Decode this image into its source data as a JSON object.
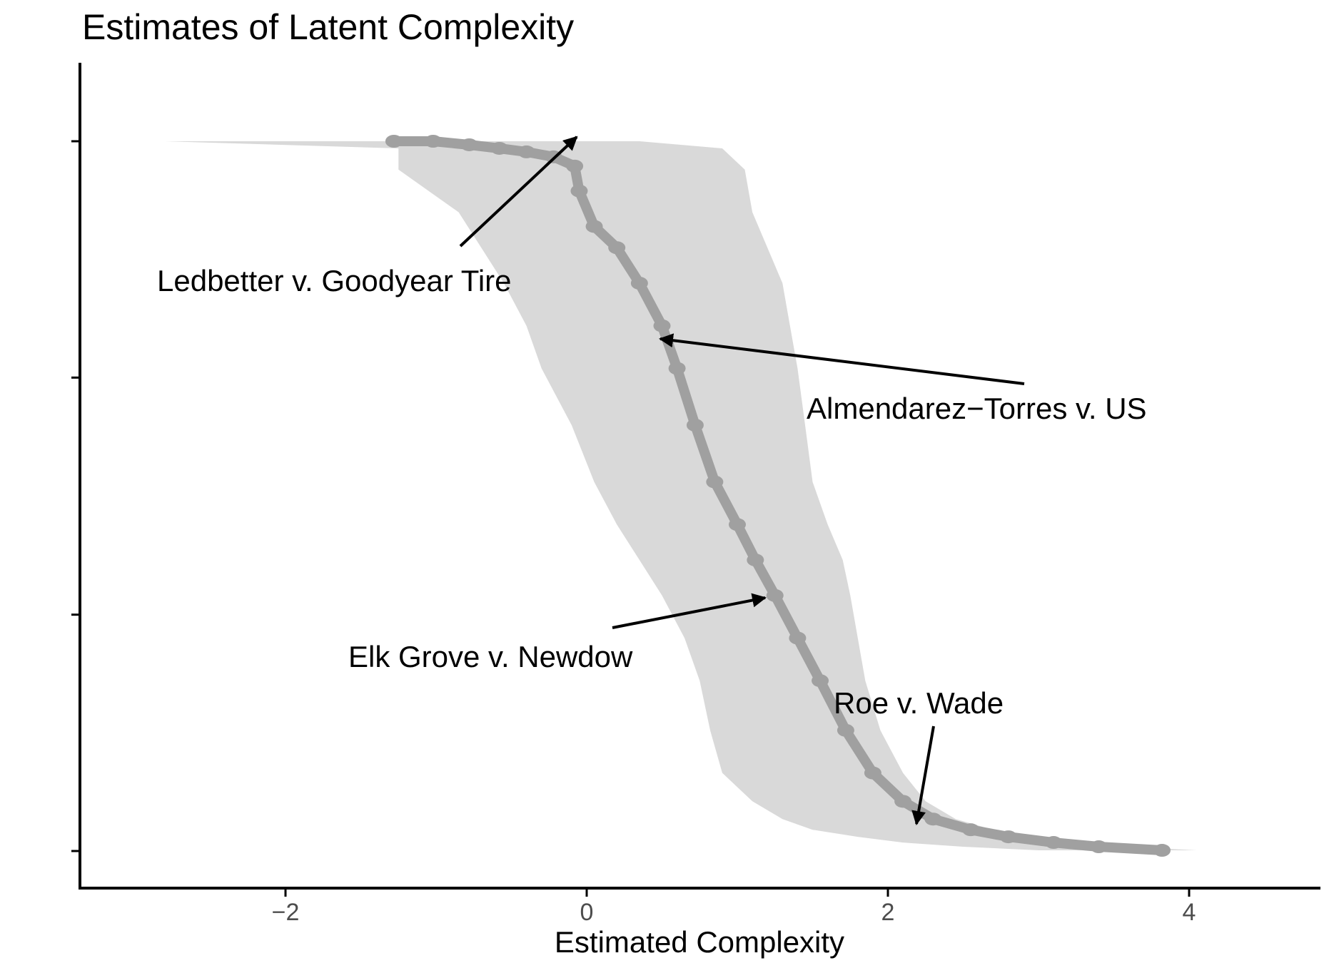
{
  "chart_data": {
    "type": "line",
    "title": "Estimates of Latent Complexity",
    "xlabel": "Estimated Complexity",
    "ylabel": "",
    "xlim": [
      -3.4,
      4.8
    ],
    "ylim": [
      -0.05,
      1.03
    ],
    "x_ticks": [
      -2,
      0,
      2,
      4
    ],
    "x_tick_labels": [
      "−2",
      "0",
      "2",
      "4"
    ],
    "y_ticks": [
      0,
      0.333,
      0.667,
      1.0
    ],
    "grid": false,
    "legend": "none",
    "colors": {
      "band": "#d9d9d9",
      "line": "#a0a0a0",
      "axis": "#000000",
      "tick_text": "#4d4d4d"
    },
    "series": [
      {
        "type": "line",
        "x": [
          -1.28,
          -1.02,
          -0.78,
          -0.58,
          -0.4,
          -0.22,
          -0.08,
          -0.05,
          0.05,
          0.2,
          0.35,
          0.5,
          0.6,
          0.72,
          0.85,
          1.0,
          1.12,
          1.25,
          1.4,
          1.55,
          1.72,
          1.9,
          2.1,
          2.3,
          2.55,
          2.8,
          3.1,
          3.4,
          3.82
        ],
        "y": [
          1.0,
          1.0,
          0.995,
          0.99,
          0.985,
          0.978,
          0.965,
          0.93,
          0.88,
          0.85,
          0.8,
          0.74,
          0.68,
          0.6,
          0.52,
          0.46,
          0.41,
          0.36,
          0.3,
          0.24,
          0.17,
          0.11,
          0.07,
          0.045,
          0.03,
          0.02,
          0.012,
          0.006,
          0.001
        ]
      },
      {
        "type": "area",
        "y": [
          1.0,
          0.99,
          0.96,
          0.9,
          0.85,
          0.8,
          0.74,
          0.68,
          0.6,
          0.52,
          0.46,
          0.41,
          0.36,
          0.3,
          0.24,
          0.17,
          0.11,
          0.07,
          0.045,
          0.03,
          0.02,
          0.012,
          0.006,
          0.001
        ],
        "lower": [
          -2.8,
          -1.25,
          -1.25,
          -0.85,
          -0.7,
          -0.55,
          -0.4,
          -0.3,
          -0.1,
          0.05,
          0.2,
          0.35,
          0.5,
          0.65,
          0.75,
          0.82,
          0.9,
          1.1,
          1.3,
          1.5,
          1.8,
          2.1,
          2.5,
          3.0
        ],
        "upper": [
          0.35,
          0.9,
          1.05,
          1.1,
          1.2,
          1.3,
          1.35,
          1.4,
          1.45,
          1.5,
          1.6,
          1.7,
          1.75,
          1.8,
          1.85,
          1.95,
          2.1,
          2.25,
          2.45,
          2.7,
          3.0,
          3.3,
          3.6,
          4.05
        ]
      }
    ],
    "annotations": [
      {
        "text": "Ledbetter v. Goodyear Tire",
        "x": -0.05,
        "y": 0.93
      },
      {
        "text": "Almendarez−Torres v. US",
        "x": 0.5,
        "y": 0.72
      },
      {
        "text": "Elk Grove v. Newdow",
        "x": 1.2,
        "y": 0.36
      },
      {
        "text": "Roe v. Wade",
        "x": 2.2,
        "y": 0.05
      }
    ]
  }
}
